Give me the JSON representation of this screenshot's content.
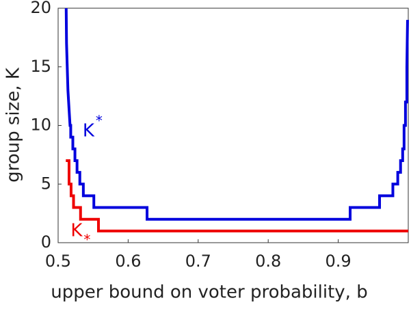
{
  "chart_data": {
    "type": "line",
    "xlabel": "upper bound on voter probability, b",
    "ylabel": "group size, K",
    "xlim": [
      0.5,
      1.0
    ],
    "xticks": [
      0.5,
      0.6,
      0.7,
      0.8,
      0.9
    ],
    "ylim": [
      0,
      20
    ],
    "yticks": [
      0,
      5,
      10,
      15,
      20
    ],
    "series": [
      {
        "name": "K*",
        "color": "#0000dd",
        "x": [
          0.5115,
          0.512,
          0.513,
          0.514,
          0.515,
          0.516,
          0.517,
          0.518,
          0.518,
          0.521,
          0.521,
          0.524,
          0.524,
          0.527,
          0.527,
          0.531,
          0.531,
          0.536,
          0.536,
          0.551,
          0.551,
          0.627,
          0.627,
          0.917,
          0.917,
          0.959,
          0.959,
          0.978,
          0.978,
          0.985,
          0.985,
          0.989,
          0.989,
          0.992,
          0.992,
          0.994,
          0.994,
          0.996,
          0.996,
          0.998,
          0.998,
          0.999
        ],
        "values": [
          20,
          17,
          15,
          13,
          12,
          11,
          10,
          10,
          9,
          9,
          8,
          8,
          7,
          7,
          6,
          6,
          5,
          5,
          4,
          4,
          3,
          3,
          2,
          2,
          3,
          3,
          4,
          4,
          5,
          5,
          6,
          6,
          7,
          7,
          8,
          8,
          10,
          10,
          12,
          12,
          15,
          19
        ]
      },
      {
        "name": "K_*",
        "color": "#ee0000",
        "x": [
          0.511,
          0.5156,
          0.5156,
          0.5185,
          0.5185,
          0.522,
          0.522,
          0.532,
          0.532,
          0.5576,
          0.5576,
          1.0
        ],
        "values": [
          7,
          7,
          5,
          5,
          4,
          4,
          3,
          3,
          2,
          2,
          1,
          1
        ]
      }
    ],
    "annotations": [
      {
        "text": "K",
        "script": "*",
        "color": "#0000dd",
        "x": 0.535,
        "y": 9.5
      },
      {
        "text": "K",
        "script": "*",
        "color": "#ee0000",
        "x": 0.518,
        "y": 1.0
      }
    ]
  }
}
